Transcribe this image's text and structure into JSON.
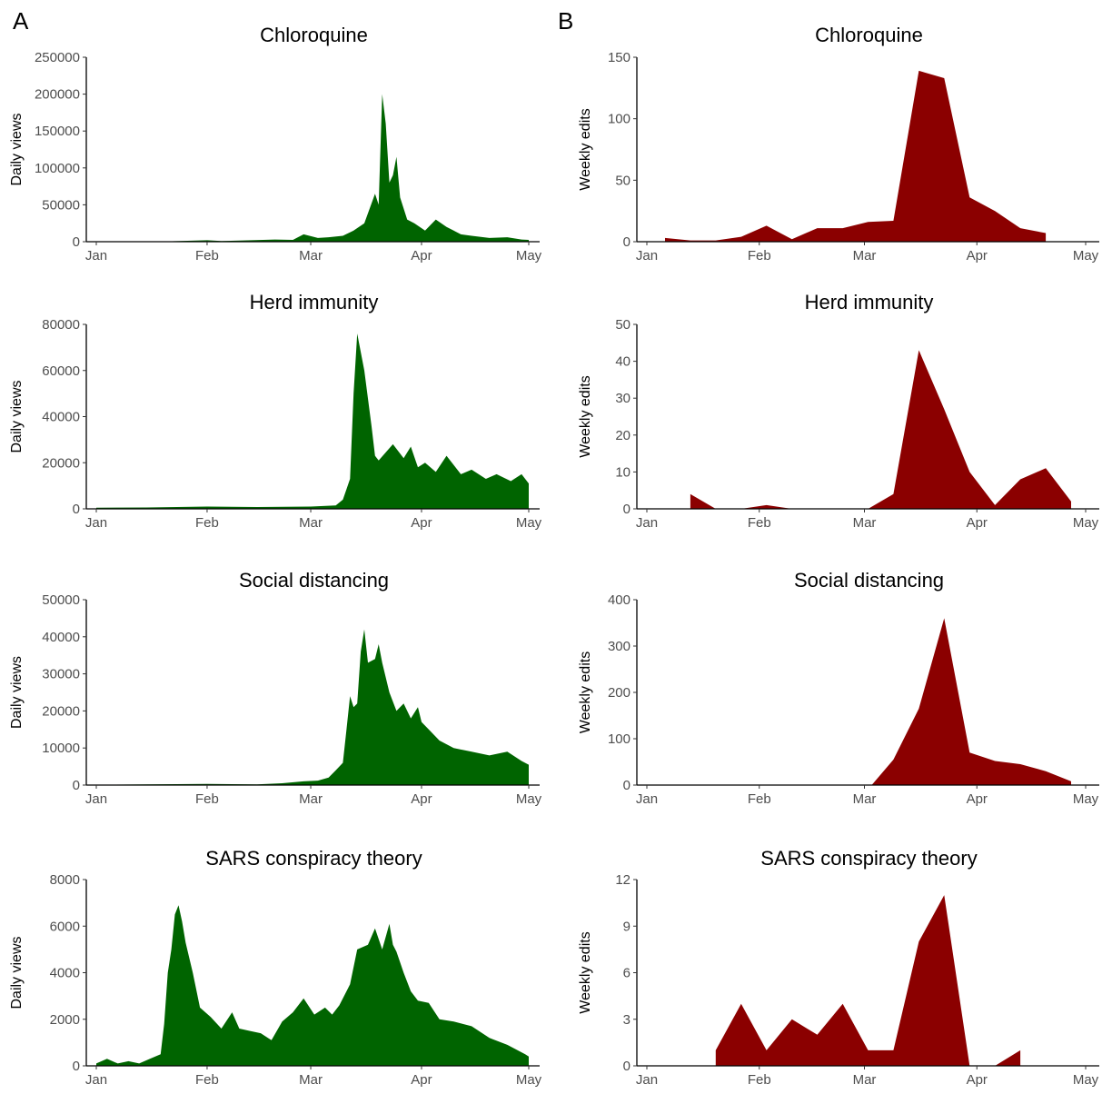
{
  "panel_labels": [
    "A",
    "B"
  ],
  "chart_data": [
    {
      "type": "area",
      "panel": "A",
      "title": "Chloroquine",
      "ylabel": "Daily views",
      "xlabel": "",
      "xlim": [
        "2020-01-01",
        "2020-05-01"
      ],
      "ylim": [
        0,
        250000
      ],
      "yticks": [
        0,
        50000,
        100000,
        150000,
        200000,
        250000
      ],
      "xticks": [
        "Jan",
        "Feb",
        "Mar",
        "Apr",
        "May"
      ],
      "color": "#006400",
      "grid": false,
      "x": [
        "2020-01-01",
        "2020-01-20",
        "2020-02-01",
        "2020-02-05",
        "2020-02-10",
        "2020-02-20",
        "2020-02-25",
        "2020-02-28",
        "2020-03-03",
        "2020-03-06",
        "2020-03-10",
        "2020-03-13",
        "2020-03-16",
        "2020-03-19",
        "2020-03-20",
        "2020-03-21",
        "2020-03-22",
        "2020-03-23",
        "2020-03-24",
        "2020-03-25",
        "2020-03-26",
        "2020-03-28",
        "2020-03-30",
        "2020-04-02",
        "2020-04-05",
        "2020-04-08",
        "2020-04-10",
        "2020-04-12",
        "2020-04-15",
        "2020-04-20",
        "2020-04-25",
        "2020-04-29",
        "2020-05-01"
      ],
      "values": [
        300,
        400,
        2000,
        1000,
        1500,
        3000,
        2500,
        10000,
        5000,
        6000,
        8000,
        15000,
        25000,
        65000,
        50000,
        200000,
        160000,
        80000,
        90000,
        115000,
        60000,
        30000,
        25000,
        15000,
        30000,
        20000,
        15000,
        10000,
        8000,
        5000,
        6000,
        3000,
        2500
      ]
    },
    {
      "type": "area",
      "panel": "B",
      "title": "Chloroquine",
      "ylabel": "Weekly edits",
      "xlabel": "",
      "xlim": [
        "2020-01-01",
        "2020-05-01"
      ],
      "ylim": [
        0,
        150
      ],
      "yticks": [
        0,
        50,
        100,
        150
      ],
      "xticks": [
        "Jan",
        "Feb",
        "Mar",
        "Apr",
        "May"
      ],
      "color": "#8B0000",
      "grid": false,
      "x": [
        "2020-01-06",
        "2020-01-13",
        "2020-01-20",
        "2020-01-27",
        "2020-02-03",
        "2020-02-10",
        "2020-02-17",
        "2020-02-24",
        "2020-03-02",
        "2020-03-09",
        "2020-03-16",
        "2020-03-23",
        "2020-03-30",
        "2020-04-06",
        "2020-04-13",
        "2020-04-20"
      ],
      "values": [
        3,
        1,
        1,
        4,
        13,
        2,
        11,
        11,
        16,
        17,
        139,
        133,
        36,
        25,
        11,
        7
      ]
    },
    {
      "type": "area",
      "panel": "A",
      "title": "Herd immunity",
      "ylabel": "Daily views",
      "xlabel": "",
      "xlim": [
        "2020-01-01",
        "2020-05-01"
      ],
      "ylim": [
        0,
        80000
      ],
      "yticks": [
        0,
        20000,
        40000,
        60000,
        80000
      ],
      "xticks": [
        "Jan",
        "Feb",
        "Mar",
        "Apr",
        "May"
      ],
      "color": "#006400",
      "grid": false,
      "x": [
        "2020-01-01",
        "2020-01-15",
        "2020-02-01",
        "2020-02-15",
        "2020-03-01",
        "2020-03-08",
        "2020-03-10",
        "2020-03-12",
        "2020-03-13",
        "2020-03-14",
        "2020-03-16",
        "2020-03-18",
        "2020-03-19",
        "2020-03-20",
        "2020-03-24",
        "2020-03-27",
        "2020-03-29",
        "2020-03-31",
        "2020-04-02",
        "2020-04-05",
        "2020-04-08",
        "2020-04-12",
        "2020-04-15",
        "2020-04-19",
        "2020-04-22",
        "2020-04-26",
        "2020-04-29",
        "2020-05-01"
      ],
      "values": [
        500,
        600,
        1000,
        800,
        1000,
        1500,
        4000,
        13000,
        50000,
        76000,
        60000,
        36000,
        23000,
        21000,
        28000,
        22000,
        27000,
        18000,
        20000,
        16000,
        23000,
        15000,
        17000,
        13000,
        15000,
        12000,
        15000,
        11000
      ]
    },
    {
      "type": "area",
      "panel": "B",
      "title": "Herd immunity",
      "ylabel": "Weekly edits",
      "xlabel": "",
      "xlim": [
        "2020-01-01",
        "2020-05-01"
      ],
      "ylim": [
        0,
        50
      ],
      "yticks": [
        0,
        10,
        20,
        30,
        40,
        50
      ],
      "xticks": [
        "Jan",
        "Feb",
        "Mar",
        "Apr",
        "May"
      ],
      "color": "#8B0000",
      "grid": false,
      "x": [
        "2020-01-13",
        "2020-01-20",
        "2020-01-27",
        "2020-02-03",
        "2020-02-10",
        "2020-02-17",
        "2020-02-24",
        "2020-03-02",
        "2020-03-09",
        "2020-03-16",
        "2020-03-23",
        "2020-03-30",
        "2020-04-06",
        "2020-04-13",
        "2020-04-20",
        "2020-04-27"
      ],
      "values": [
        4,
        0,
        0,
        1,
        0,
        0,
        0,
        0,
        4,
        43,
        27,
        10,
        1,
        8,
        11,
        2
      ]
    },
    {
      "type": "area",
      "panel": "A",
      "title": "Social distancing",
      "ylabel": "Daily views",
      "xlabel": "",
      "xlim": [
        "2020-01-01",
        "2020-05-01"
      ],
      "ylim": [
        0,
        50000
      ],
      "yticks": [
        0,
        10000,
        20000,
        30000,
        40000,
        50000
      ],
      "xticks": [
        "Jan",
        "Feb",
        "Mar",
        "Apr",
        "May"
      ],
      "color": "#006400",
      "grid": false,
      "x": [
        "2020-01-01",
        "2020-02-01",
        "2020-02-15",
        "2020-02-22",
        "2020-02-28",
        "2020-03-03",
        "2020-03-06",
        "2020-03-08",
        "2020-03-10",
        "2020-03-11",
        "2020-03-12",
        "2020-03-13",
        "2020-03-14",
        "2020-03-15",
        "2020-03-16",
        "2020-03-17",
        "2020-03-19",
        "2020-03-20",
        "2020-03-21",
        "2020-03-23",
        "2020-03-25",
        "2020-03-27",
        "2020-03-29",
        "2020-03-31",
        "2020-04-01",
        "2020-04-03",
        "2020-04-06",
        "2020-04-10",
        "2020-04-15",
        "2020-04-20",
        "2020-04-25",
        "2020-04-29",
        "2020-05-01"
      ],
      "values": [
        100,
        300,
        200,
        500,
        1000,
        1200,
        2000,
        4000,
        6000,
        15000,
        24000,
        21000,
        22000,
        36000,
        42000,
        33000,
        34000,
        38000,
        33000,
        25000,
        20000,
        22000,
        18000,
        21000,
        17000,
        15000,
        12000,
        10000,
        9000,
        8000,
        9000,
        6500,
        5500
      ]
    },
    {
      "type": "area",
      "panel": "B",
      "title": "Social distancing",
      "ylabel": "Weekly edits",
      "xlabel": "",
      "xlim": [
        "2020-01-01",
        "2020-05-01"
      ],
      "ylim": [
        0,
        400
      ],
      "yticks": [
        0,
        100,
        200,
        300,
        400
      ],
      "xticks": [
        "Jan",
        "Feb",
        "Mar",
        "Apr",
        "May"
      ],
      "color": "#8B0000",
      "grid": false,
      "x": [
        "2020-03-03",
        "2020-03-09",
        "2020-03-16",
        "2020-03-23",
        "2020-03-30",
        "2020-04-06",
        "2020-04-13",
        "2020-04-20",
        "2020-04-27"
      ],
      "values": [
        0,
        55,
        165,
        360,
        70,
        52,
        45,
        30,
        8
      ]
    },
    {
      "type": "area",
      "panel": "A",
      "title": "SARS conspiracy theory",
      "ylabel": "Daily views",
      "xlabel": "",
      "xlim": [
        "2020-01-01",
        "2020-05-01"
      ],
      "ylim": [
        0,
        8000
      ],
      "yticks": [
        0,
        2000,
        4000,
        6000,
        8000
      ],
      "xticks": [
        "Jan",
        "Feb",
        "Mar",
        "Apr",
        "May"
      ],
      "color": "#006400",
      "grid": false,
      "x": [
        "2020-01-01",
        "2020-01-04",
        "2020-01-07",
        "2020-01-10",
        "2020-01-13",
        "2020-01-16",
        "2020-01-19",
        "2020-01-20",
        "2020-01-21",
        "2020-01-22",
        "2020-01-23",
        "2020-01-24",
        "2020-01-25",
        "2020-01-26",
        "2020-01-28",
        "2020-01-30",
        "2020-02-02",
        "2020-02-05",
        "2020-02-08",
        "2020-02-10",
        "2020-02-13",
        "2020-02-16",
        "2020-02-19",
        "2020-02-22",
        "2020-02-25",
        "2020-02-28",
        "2020-03-02",
        "2020-03-05",
        "2020-03-07",
        "2020-03-09",
        "2020-03-12",
        "2020-03-14",
        "2020-03-17",
        "2020-03-19",
        "2020-03-21",
        "2020-03-23",
        "2020-03-24",
        "2020-03-25",
        "2020-03-27",
        "2020-03-29",
        "2020-03-31",
        "2020-04-03",
        "2020-04-06",
        "2020-04-10",
        "2020-04-15",
        "2020-04-20",
        "2020-04-25",
        "2020-04-30",
        "2020-05-01"
      ],
      "values": [
        100,
        300,
        100,
        200,
        100,
        300,
        500,
        1800,
        4000,
        5000,
        6500,
        6900,
        6200,
        5300,
        4000,
        2500,
        2100,
        1600,
        2300,
        1600,
        1500,
        1400,
        1100,
        1900,
        2300,
        2900,
        2200,
        2500,
        2200,
        2600,
        3500,
        5000,
        5200,
        5900,
        5000,
        6100,
        5200,
        4900,
        4000,
        3200,
        2800,
        2700,
        2000,
        1900,
        1700,
        1200,
        900,
        500,
        400
      ]
    },
    {
      "type": "area",
      "panel": "B",
      "title": "SARS conspiracy theory",
      "ylabel": "Weekly edits",
      "xlabel": "",
      "xlim": [
        "2020-01-01",
        "2020-05-01"
      ],
      "ylim": [
        0,
        12
      ],
      "yticks": [
        0,
        3,
        6,
        9,
        12
      ],
      "xticks": [
        "Jan",
        "Feb",
        "Mar",
        "Apr",
        "May"
      ],
      "color": "#8B0000",
      "grid": false,
      "x": [
        "2020-01-20",
        "2020-01-27",
        "2020-02-03",
        "2020-02-10",
        "2020-02-17",
        "2020-02-24",
        "2020-03-02",
        "2020-03-09",
        "2020-03-16",
        "2020-03-23",
        "2020-03-30",
        "2020-04-06",
        "2020-04-13"
      ],
      "values": [
        1,
        4,
        1,
        3,
        2,
        4,
        1,
        1,
        8,
        11,
        0,
        0,
        1
      ]
    }
  ]
}
